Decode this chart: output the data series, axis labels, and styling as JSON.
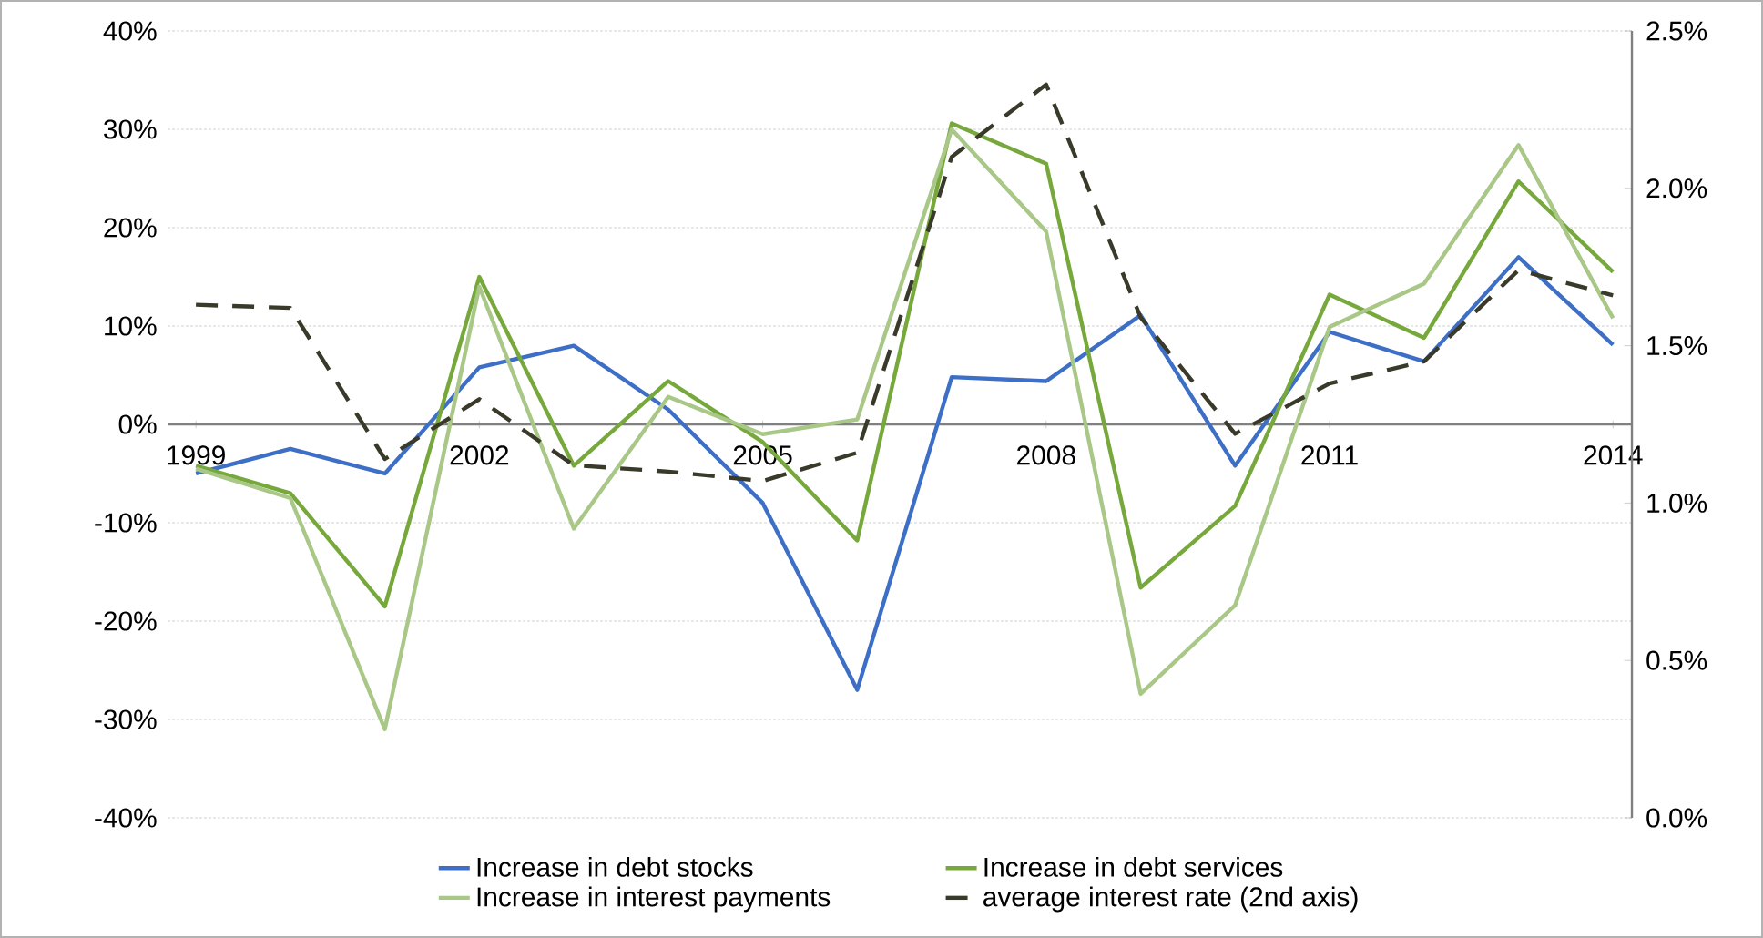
{
  "chart_data": {
    "type": "line",
    "x": [
      1999,
      2000,
      2001,
      2002,
      2003,
      2004,
      2005,
      2006,
      2007,
      2008,
      2009,
      2010,
      2011,
      2012,
      2013,
      2014
    ],
    "xlim": [
      1998.7,
      2014.2
    ],
    "xticks": [
      1999,
      2002,
      2005,
      2008,
      2011,
      2014
    ],
    "ylim": [
      -40,
      40
    ],
    "yticks": [
      {
        "value": -40,
        "label": "-40%"
      },
      {
        "value": -30,
        "label": "-30%"
      },
      {
        "value": -20,
        "label": "-20%"
      },
      {
        "value": -10,
        "label": "-10%"
      },
      {
        "value": 0,
        "label": "0%"
      },
      {
        "value": 10,
        "label": "10%"
      },
      {
        "value": 20,
        "label": "20%"
      },
      {
        "value": 30,
        "label": "30%"
      },
      {
        "value": 40,
        "label": "40%"
      }
    ],
    "y2lim": [
      0,
      2.5
    ],
    "y2ticks": [
      {
        "value": 0,
        "label": "0.0%"
      },
      {
        "value": 0.5,
        "label": "0.5%"
      },
      {
        "value": 1.0,
        "label": "1.0%"
      },
      {
        "value": 1.5,
        "label": "1.5%"
      },
      {
        "value": 2.0,
        "label": "2.0%"
      },
      {
        "value": 2.5,
        "label": "2.5%"
      }
    ],
    "grid": "y",
    "legend": "bottom",
    "marker": "none",
    "series": [
      {
        "name": "Increase in debt stocks",
        "color": "#3d6fc6",
        "line_style": "solid",
        "values": [
          -5,
          -2.5,
          -5,
          5.8,
          8,
          1.5,
          -8,
          -27,
          4.8,
          4.4,
          11.1,
          -4.2,
          9.4,
          6.4,
          17,
          8.1
        ]
      },
      {
        "name": "Increase in debt services",
        "color": "#77a83c",
        "line_style": "solid",
        "values": [
          -4.2,
          -7,
          -18.5,
          15,
          -4.2,
          4.4,
          -1.8,
          -11.8,
          30.6,
          26.5,
          -16.6,
          -8.3,
          13.2,
          8.8,
          24.7,
          15.5
        ]
      },
      {
        "name": "Increase in interest payments",
        "color": "#a9c787",
        "line_style": "solid",
        "values": [
          -4.5,
          -7.5,
          -31,
          14,
          -10.6,
          2.8,
          -1,
          0.5,
          30,
          19.6,
          -27.4,
          -18.4,
          9.9,
          14.3,
          28.4,
          10.8
        ]
      },
      {
        "name": "average interest rate (2nd axis)",
        "color": "#3a3a2a",
        "line_style": "dashed",
        "axis": "y2",
        "values": [
          1.63,
          1.62,
          1.14,
          1.33,
          1.12,
          1.1,
          1.07,
          1.16,
          2.1,
          2.33,
          1.59,
          1.22,
          1.38,
          1.45,
          1.74,
          1.66
        ]
      }
    ]
  }
}
